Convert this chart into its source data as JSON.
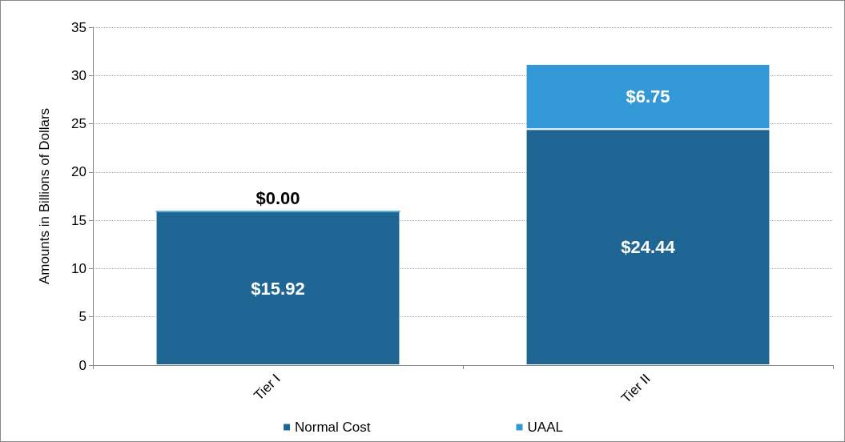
{
  "chart_data": {
    "type": "bar",
    "stacked": true,
    "ylabel": "Amounts in Billions of Dollars",
    "categories": [
      "Tier I",
      "Tier II"
    ],
    "series": [
      {
        "name": "Normal Cost",
        "color": "#206694",
        "values": [
          15.92,
          24.44
        ],
        "value_labels": [
          "$15.92",
          "$24.44"
        ]
      },
      {
        "name": "UAAL",
        "color": "#3399d6",
        "values": [
          0,
          6.75
        ],
        "value_labels": [
          "$0.00",
          "$6.75"
        ]
      }
    ],
    "ylim": [
      0,
      35
    ],
    "yticks": [
      0,
      5,
      10,
      15,
      20,
      25,
      30,
      35
    ],
    "grid": "y",
    "legend": "bottom"
  }
}
